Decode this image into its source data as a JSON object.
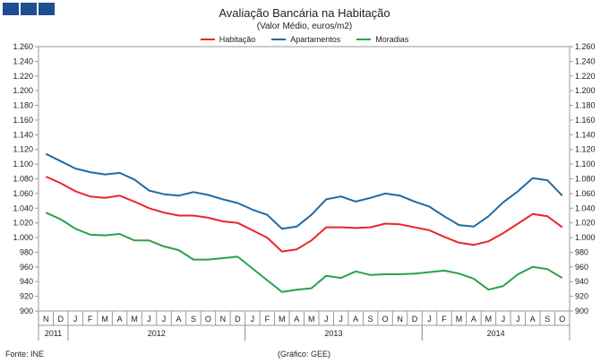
{
  "chart_data": {
    "type": "line",
    "title": "Avaliação Bancária na Habitação",
    "subtitle": "(Valor Médio, euros/m2)",
    "ylim": [
      900,
      1260
    ],
    "ytick_step": 20,
    "months": [
      "N",
      "D",
      "J",
      "F",
      "M",
      "A",
      "M",
      "J",
      "J",
      "A",
      "S",
      "O",
      "N",
      "D",
      "J",
      "F",
      "M",
      "A",
      "M",
      "J",
      "J",
      "A",
      "S",
      "O",
      "N",
      "D",
      "J",
      "F",
      "M",
      "A",
      "M",
      "J",
      "J",
      "A",
      "S",
      "O"
    ],
    "years": [
      {
        "label": "2011",
        "start": 0,
        "end": 1
      },
      {
        "label": "2012",
        "start": 2,
        "end": 13
      },
      {
        "label": "2013",
        "start": 14,
        "end": 25
      },
      {
        "label": "2014",
        "start": 26,
        "end": 35
      }
    ],
    "series": [
      {
        "name": "Habitação",
        "color": "#e8262b",
        "values": [
          1083,
          1074,
          1063,
          1056,
          1054,
          1057,
          1049,
          1040,
          1034,
          1030,
          1030,
          1027,
          1022,
          1020,
          1010,
          1000,
          981,
          984,
          996,
          1014,
          1014,
          1013,
          1014,
          1019,
          1018,
          1014,
          1010,
          1001,
          993,
          990,
          995,
          1006,
          1019,
          1032,
          1029,
          1014
        ]
      },
      {
        "name": "Apartamentos",
        "color": "#1f6aa5",
        "values": [
          1114,
          1104,
          1094,
          1089,
          1086,
          1088,
          1079,
          1064,
          1059,
          1057,
          1062,
          1058,
          1052,
          1047,
          1038,
          1031,
          1012,
          1015,
          1031,
          1052,
          1056,
          1049,
          1054,
          1060,
          1057,
          1049,
          1042,
          1029,
          1017,
          1015,
          1029,
          1048,
          1063,
          1081,
          1078,
          1057
        ]
      },
      {
        "name": "Moradias",
        "color": "#2aa14a",
        "values": [
          1034,
          1025,
          1012,
          1004,
          1003,
          1005,
          996,
          996,
          988,
          983,
          970,
          970,
          972,
          974,
          958,
          942,
          926,
          929,
          931,
          948,
          945,
          954,
          949,
          950,
          950,
          951,
          953,
          955,
          951,
          944,
          929,
          934,
          950,
          960,
          957,
          945
        ]
      }
    ]
  },
  "footer": {
    "source": "Fonte: INE",
    "credit": "(Gráfico: GEE)"
  }
}
